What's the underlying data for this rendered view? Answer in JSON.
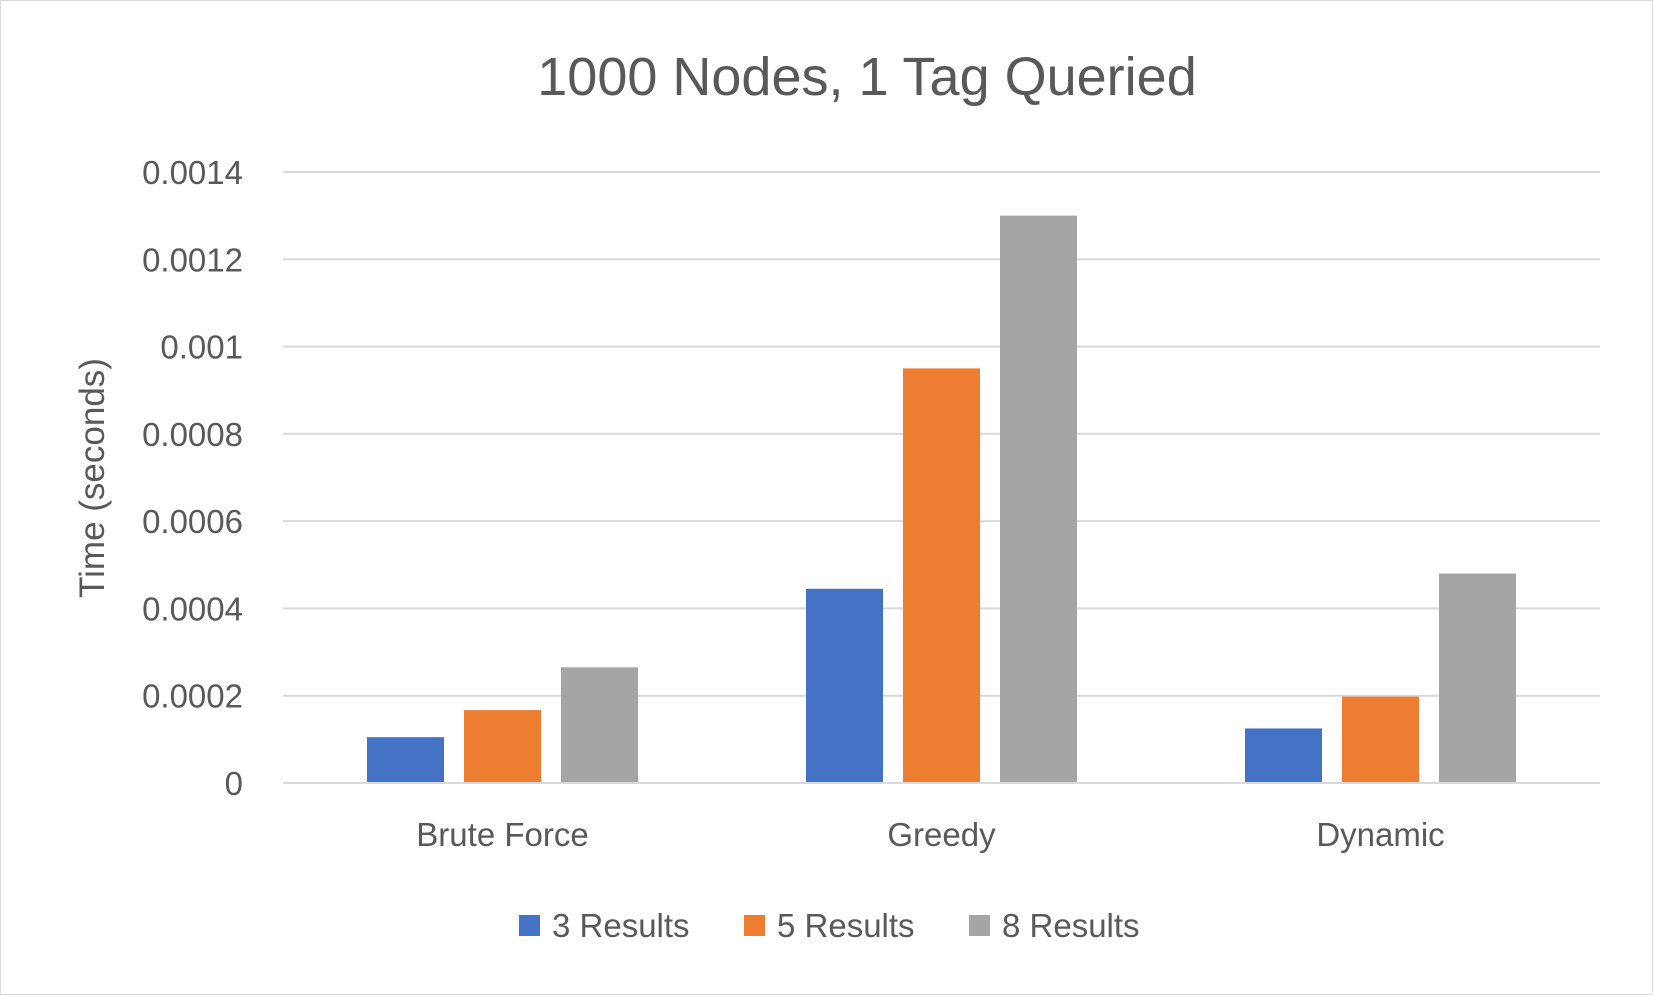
{
  "chart_data": {
    "type": "bar",
    "title": "1000 Nodes, 1 Tag Queried",
    "xlabel": "",
    "ylabel": "Time (seconds)",
    "categories": [
      "Brute Force",
      "Greedy",
      "Dynamic"
    ],
    "series": [
      {
        "name": "3 Results",
        "color": "#4472C4",
        "values": [
          0.000105,
          0.000445,
          0.000125
        ]
      },
      {
        "name": "5 Results",
        "color": "#ED7D31",
        "values": [
          0.000167,
          0.00095,
          0.000198
        ]
      },
      {
        "name": "8 Results",
        "color": "#A5A5A5",
        "values": [
          0.000265,
          0.0013,
          0.00048
        ]
      }
    ],
    "ylim": [
      0,
      0.0014
    ],
    "yticks": [
      {
        "value": 0,
        "label": "0"
      },
      {
        "value": 0.0002,
        "label": "0.0002"
      },
      {
        "value": 0.0004,
        "label": "0.0004"
      },
      {
        "value": 0.0006,
        "label": "0.0006"
      },
      {
        "value": 0.0008,
        "label": "0.0008"
      },
      {
        "value": 0.001,
        "label": "0.001"
      },
      {
        "value": 0.0012,
        "label": "0.0012"
      },
      {
        "value": 0.0014,
        "label": "0.0014"
      }
    ],
    "grid": true,
    "legend_position": "bottom"
  }
}
